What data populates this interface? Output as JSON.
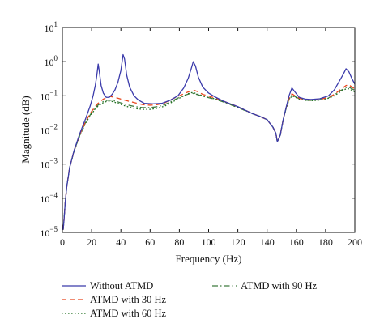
{
  "chart_data": {
    "type": "line",
    "title": "",
    "xlabel": "Frequency (Hz)",
    "ylabel": "Magnitude (dB)",
    "xlim": [
      0,
      200
    ],
    "ylim": [
      1e-05,
      10
    ],
    "yscale": "log",
    "grid": false,
    "legend_position": "bottom",
    "x_ticks": [
      0,
      20,
      40,
      60,
      80,
      100,
      120,
      140,
      160,
      180,
      200
    ],
    "y_ticks": [
      {
        "value": 1e-05,
        "base": "10",
        "exp": "−5"
      },
      {
        "value": 0.0001,
        "base": "10",
        "exp": "−4"
      },
      {
        "value": 0.001,
        "base": "10",
        "exp": "−3"
      },
      {
        "value": 0.01,
        "base": "10",
        "exp": "−2"
      },
      {
        "value": 0.1,
        "base": "10",
        "exp": "−1"
      },
      {
        "value": 1,
        "base": "10",
        "exp": "0"
      },
      {
        "value": 10,
        "base": "10",
        "exp": "1"
      }
    ],
    "series": [
      {
        "name": "Without ATMD",
        "color": "#3b3bab",
        "dash": "solid",
        "points": [
          [
            0.5,
            1.2e-05
          ],
          [
            1,
            2e-05
          ],
          [
            2,
            8e-05
          ],
          [
            3,
            0.00022
          ],
          [
            5,
            0.0008
          ],
          [
            8,
            0.0025
          ],
          [
            12,
            0.008
          ],
          [
            16,
            0.022
          ],
          [
            19,
            0.05
          ],
          [
            21,
            0.1
          ],
          [
            22.5,
            0.2
          ],
          [
            23.5,
            0.38
          ],
          [
            24.5,
            0.85
          ],
          [
            25.3,
            0.5
          ],
          [
            26.5,
            0.2
          ],
          [
            28,
            0.12
          ],
          [
            30,
            0.09
          ],
          [
            32,
            0.09
          ],
          [
            34,
            0.11
          ],
          [
            36,
            0.15
          ],
          [
            38,
            0.25
          ],
          [
            40,
            0.55
          ],
          [
            41.5,
            1.6
          ],
          [
            42.5,
            1.2
          ],
          [
            44,
            0.4
          ],
          [
            46,
            0.18
          ],
          [
            49,
            0.1
          ],
          [
            52,
            0.075
          ],
          [
            56,
            0.06
          ],
          [
            62,
            0.058
          ],
          [
            68,
            0.06
          ],
          [
            74,
            0.075
          ],
          [
            79,
            0.1
          ],
          [
            83,
            0.17
          ],
          [
            86,
            0.32
          ],
          [
            88,
            0.6
          ],
          [
            89.5,
            1.0
          ],
          [
            91,
            0.75
          ],
          [
            93,
            0.35
          ],
          [
            96,
            0.18
          ],
          [
            100,
            0.12
          ],
          [
            105,
            0.09
          ],
          [
            110,
            0.07
          ],
          [
            115,
            0.058
          ],
          [
            120,
            0.048
          ],
          [
            125,
            0.038
          ],
          [
            130,
            0.03
          ],
          [
            135,
            0.025
          ],
          [
            140,
            0.02
          ],
          [
            144,
            0.012
          ],
          [
            146,
            0.008
          ],
          [
            147,
            0.0045
          ],
          [
            149,
            0.007
          ],
          [
            151,
            0.02
          ],
          [
            153,
            0.045
          ],
          [
            155,
            0.1
          ],
          [
            157,
            0.17
          ],
          [
            159,
            0.13
          ],
          [
            162,
            0.09
          ],
          [
            166,
            0.08
          ],
          [
            170,
            0.078
          ],
          [
            176,
            0.082
          ],
          [
            182,
            0.1
          ],
          [
            186,
            0.15
          ],
          [
            189,
            0.25
          ],
          [
            192,
            0.42
          ],
          [
            194,
            0.62
          ],
          [
            196,
            0.5
          ],
          [
            198,
            0.32
          ],
          [
            200,
            0.22
          ]
        ]
      },
      {
        "name": "ATMD with 30 Hz",
        "color": "#e8461e",
        "dash": "6,4",
        "points": [
          [
            0.5,
            1.2e-05
          ],
          [
            1,
            2e-05
          ],
          [
            2,
            8e-05
          ],
          [
            3,
            0.00022
          ],
          [
            5,
            0.0008
          ],
          [
            8,
            0.0025
          ],
          [
            12,
            0.0075
          ],
          [
            16,
            0.018
          ],
          [
            20,
            0.035
          ],
          [
            24,
            0.058
          ],
          [
            28,
            0.08
          ],
          [
            31,
            0.092
          ],
          [
            33,
            0.095
          ],
          [
            36,
            0.09
          ],
          [
            40,
            0.08
          ],
          [
            45,
            0.07
          ],
          [
            50,
            0.062
          ],
          [
            55,
            0.055
          ],
          [
            60,
            0.053
          ],
          [
            65,
            0.055
          ],
          [
            70,
            0.062
          ],
          [
            75,
            0.08
          ],
          [
            80,
            0.1
          ],
          [
            84,
            0.12
          ],
          [
            88,
            0.14
          ],
          [
            90,
            0.145
          ],
          [
            93,
            0.13
          ],
          [
            96,
            0.11
          ],
          [
            100,
            0.098
          ],
          [
            105,
            0.085
          ],
          [
            110,
            0.07
          ],
          [
            115,
            0.058
          ],
          [
            120,
            0.048
          ],
          [
            125,
            0.038
          ],
          [
            130,
            0.03
          ],
          [
            135,
            0.025
          ],
          [
            140,
            0.02
          ],
          [
            144,
            0.012
          ],
          [
            146,
            0.008
          ],
          [
            147,
            0.0045
          ],
          [
            149,
            0.007
          ],
          [
            151,
            0.02
          ],
          [
            153,
            0.045
          ],
          [
            155,
            0.085
          ],
          [
            157,
            0.115
          ],
          [
            159,
            0.1
          ],
          [
            162,
            0.085
          ],
          [
            166,
            0.078
          ],
          [
            170,
            0.075
          ],
          [
            176,
            0.078
          ],
          [
            182,
            0.09
          ],
          [
            186,
            0.11
          ],
          [
            190,
            0.15
          ],
          [
            194,
            0.2
          ],
          [
            196,
            0.21
          ],
          [
            198,
            0.18
          ],
          [
            200,
            0.16
          ]
        ]
      },
      {
        "name": "ATMD with 60 Hz",
        "color": "#1c6e1c",
        "dash": "1.6,2.4",
        "points": [
          [
            0.5,
            1.2e-05
          ],
          [
            1,
            2e-05
          ],
          [
            2,
            8e-05
          ],
          [
            3,
            0.00022
          ],
          [
            5,
            0.0008
          ],
          [
            8,
            0.0024
          ],
          [
            12,
            0.007
          ],
          [
            16,
            0.016
          ],
          [
            20,
            0.03
          ],
          [
            24,
            0.048
          ],
          [
            28,
            0.063
          ],
          [
            31,
            0.07
          ],
          [
            34,
            0.068
          ],
          [
            38,
            0.06
          ],
          [
            42,
            0.052
          ],
          [
            46,
            0.046
          ],
          [
            50,
            0.042
          ],
          [
            55,
            0.04
          ],
          [
            60,
            0.04
          ],
          [
            65,
            0.043
          ],
          [
            70,
            0.05
          ],
          [
            75,
            0.065
          ],
          [
            80,
            0.085
          ],
          [
            84,
            0.105
          ],
          [
            87,
            0.12
          ],
          [
            89,
            0.125
          ],
          [
            92,
            0.115
          ],
          [
            96,
            0.1
          ],
          [
            100,
            0.09
          ],
          [
            105,
            0.08
          ],
          [
            110,
            0.068
          ],
          [
            115,
            0.056
          ],
          [
            120,
            0.046
          ],
          [
            125,
            0.037
          ],
          [
            130,
            0.03
          ],
          [
            135,
            0.025
          ],
          [
            140,
            0.02
          ],
          [
            144,
            0.012
          ],
          [
            146,
            0.008
          ],
          [
            147,
            0.0045
          ],
          [
            149,
            0.007
          ],
          [
            151,
            0.02
          ],
          [
            153,
            0.042
          ],
          [
            155,
            0.075
          ],
          [
            157,
            0.1
          ],
          [
            159,
            0.092
          ],
          [
            162,
            0.08
          ],
          [
            166,
            0.074
          ],
          [
            170,
            0.072
          ],
          [
            176,
            0.075
          ],
          [
            182,
            0.085
          ],
          [
            186,
            0.1
          ],
          [
            190,
            0.13
          ],
          [
            194,
            0.16
          ],
          [
            196,
            0.16
          ],
          [
            198,
            0.145
          ],
          [
            200,
            0.13
          ]
        ]
      },
      {
        "name": "ATMD with 90 Hz",
        "color": "#3f7a3f",
        "dash": "7,3,1.5,3",
        "points": [
          [
            0.5,
            1.2e-05
          ],
          [
            1,
            2e-05
          ],
          [
            2,
            8e-05
          ],
          [
            3,
            0.00022
          ],
          [
            5,
            0.0008
          ],
          [
            8,
            0.0024
          ],
          [
            12,
            0.0072
          ],
          [
            16,
            0.017
          ],
          [
            20,
            0.032
          ],
          [
            24,
            0.052
          ],
          [
            28,
            0.068
          ],
          [
            31,
            0.075
          ],
          [
            34,
            0.074
          ],
          [
            38,
            0.066
          ],
          [
            42,
            0.058
          ],
          [
            46,
            0.052
          ],
          [
            50,
            0.048
          ],
          [
            55,
            0.045
          ],
          [
            60,
            0.045
          ],
          [
            65,
            0.048
          ],
          [
            70,
            0.055
          ],
          [
            75,
            0.07
          ],
          [
            80,
            0.09
          ],
          [
            84,
            0.105
          ],
          [
            87,
            0.115
          ],
          [
            89,
            0.118
          ],
          [
            92,
            0.11
          ],
          [
            96,
            0.097
          ],
          [
            100,
            0.088
          ],
          [
            105,
            0.078
          ],
          [
            110,
            0.066
          ],
          [
            115,
            0.055
          ],
          [
            120,
            0.045
          ],
          [
            125,
            0.037
          ],
          [
            130,
            0.03
          ],
          [
            135,
            0.025
          ],
          [
            140,
            0.02
          ],
          [
            144,
            0.012
          ],
          [
            146,
            0.008
          ],
          [
            147,
            0.0045
          ],
          [
            149,
            0.007
          ],
          [
            151,
            0.02
          ],
          [
            153,
            0.043
          ],
          [
            155,
            0.08
          ],
          [
            157,
            0.105
          ],
          [
            159,
            0.095
          ],
          [
            162,
            0.082
          ],
          [
            166,
            0.075
          ],
          [
            170,
            0.073
          ],
          [
            176,
            0.076
          ],
          [
            182,
            0.087
          ],
          [
            186,
            0.105
          ],
          [
            190,
            0.14
          ],
          [
            194,
            0.175
          ],
          [
            196,
            0.18
          ],
          [
            198,
            0.16
          ],
          [
            200,
            0.145
          ]
        ]
      }
    ],
    "legend": [
      {
        "series": 0
      },
      {
        "series": 1
      },
      {
        "series": 2
      },
      {
        "series": 3
      }
    ]
  }
}
